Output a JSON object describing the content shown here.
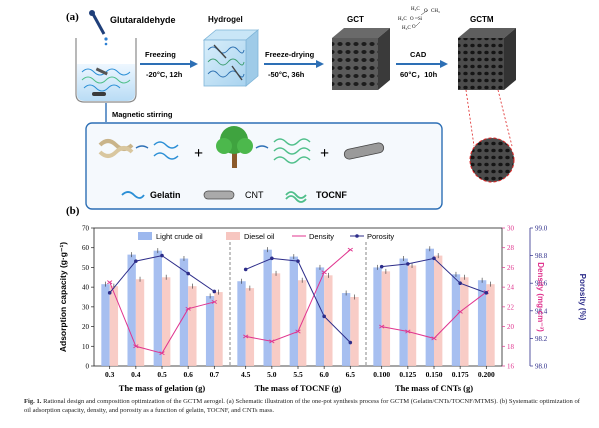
{
  "panel_a": {
    "label": "(a)",
    "steps": [
      {
        "name": "Glutaraldehyde"
      },
      {
        "name": "Hydrogel"
      },
      {
        "name": "GCT"
      },
      {
        "name": "GCTM"
      }
    ],
    "arrows": [
      {
        "top": "Freezing",
        "bottom": "-20°C, 12h"
      },
      {
        "top": "Freeze-drying",
        "bottom": "-50°C, 36h"
      },
      {
        "top": "CAD",
        "bottom": "60°C，10h"
      }
    ],
    "stirring": "Magnetic stirring",
    "silane_groups": [
      "H₃C",
      "CH₃",
      "H₃C",
      "Si",
      "H₃C",
      "O",
      "O",
      "O"
    ],
    "legend": [
      {
        "name": "Gelatin",
        "color": "#2b8fd6"
      },
      {
        "name": "CNT",
        "color": "#555555"
      },
      {
        "name": "TOCNF",
        "color": "#4fbf8a"
      }
    ],
    "plus": "+"
  },
  "panel_b": {
    "label": "(b)",
    "legend": [
      "Light crude oil",
      "Diesel oil",
      "Density",
      "Porosity"
    ],
    "ylabel_left": "Adsorption capacity (g·g⁻¹)",
    "ylabel_density": "Density (mg·cm⁻³)",
    "ylabel_porosity": "Porosity (%)",
    "left_ticks": [
      "0",
      "10",
      "20",
      "30",
      "40",
      "50",
      "60",
      "70"
    ],
    "density_ticks": [
      "16",
      "18",
      "20",
      "22",
      "24",
      "26",
      "28",
      "30"
    ],
    "porosity_ticks": [
      "98.0",
      "98.2",
      "98.4",
      "98.6",
      "98.8",
      "99.0"
    ],
    "colors": {
      "light": "#9db8ee",
      "diesel": "#f7c6c0",
      "density": "#e0358f",
      "porosity": "#2d2d8a"
    }
  },
  "chart_data": [
    {
      "type": "bar",
      "xlabel": "The mass of gelation (g)",
      "categories": [
        "0.3",
        "0.4",
        "0.5",
        "0.6",
        "0.7"
      ],
      "series": [
        {
          "name": "Light crude oil",
          "values": [
            41.5,
            56.5,
            58.5,
            54.5,
            35.5
          ]
        },
        {
          "name": "Diesel oil",
          "values": [
            40.5,
            44,
            45,
            40.5,
            37.5
          ]
        },
        {
          "name": "Density",
          "axis": "density",
          "values": [
            24.5,
            18,
            17.3,
            21.8,
            22.5
          ]
        },
        {
          "name": "Porosity",
          "axis": "porosity",
          "values": [
            98.53,
            98.76,
            98.8,
            98.67,
            98.54
          ]
        }
      ],
      "ylim": [
        0,
        70
      ],
      "density_lim": [
        16,
        30
      ],
      "porosity_lim": [
        98.0,
        99.0
      ]
    },
    {
      "type": "bar",
      "xlabel": "The mass of TOCNF (g)",
      "categories": [
        "4.5",
        "5.0",
        "5.5",
        "6.0",
        "6.5"
      ],
      "series": [
        {
          "name": "Light crude oil",
          "values": [
            43,
            59,
            55.5,
            50,
            37
          ]
        },
        {
          "name": "Diesel oil",
          "values": [
            39.5,
            47,
            43.5,
            46,
            35
          ]
        },
        {
          "name": "Density",
          "axis": "density",
          "values": [
            19,
            18.5,
            19.5,
            25.5,
            27.8
          ]
        },
        {
          "name": "Porosity",
          "axis": "porosity",
          "values": [
            98.7,
            98.78,
            98.76,
            98.36,
            98.17
          ]
        }
      ],
      "ylim": [
        0,
        70
      ],
      "density_lim": [
        16,
        30
      ],
      "porosity_lim": [
        98.0,
        99.0
      ]
    },
    {
      "type": "bar",
      "xlabel": "The mass of CNTs (g)",
      "categories": [
        "0.100",
        "0.125",
        "0.150",
        "0.175",
        "0.200"
      ],
      "series": [
        {
          "name": "Light crude oil",
          "values": [
            50,
            54.5,
            59.5,
            46.5,
            43.5
          ]
        },
        {
          "name": "Diesel oil",
          "values": [
            48,
            51,
            56,
            45,
            41.5
          ]
        },
        {
          "name": "Density",
          "axis": "density",
          "values": [
            20,
            19.5,
            18.8,
            21.5,
            23.5
          ]
        },
        {
          "name": "Porosity",
          "axis": "porosity",
          "values": [
            98.72,
            98.74,
            98.78,
            98.6,
            98.53
          ]
        }
      ],
      "ylim": [
        0,
        70
      ],
      "density_lim": [
        16,
        30
      ],
      "porosity_lim": [
        98.0,
        99.0
      ]
    }
  ],
  "caption": {
    "bold": "Fig. 1.",
    "text": "Rational design and composition optimization of the GCTM aerogel. (a) Schematic illustration of the one-pot synthesis process for GCTM (Gelatin/CNTs/TOCNF/MTMS). (b) Systematic optimization of oil adsorption capacity, density, and porosity as a function of gelatin, TOCNF, and CNTs mass."
  }
}
